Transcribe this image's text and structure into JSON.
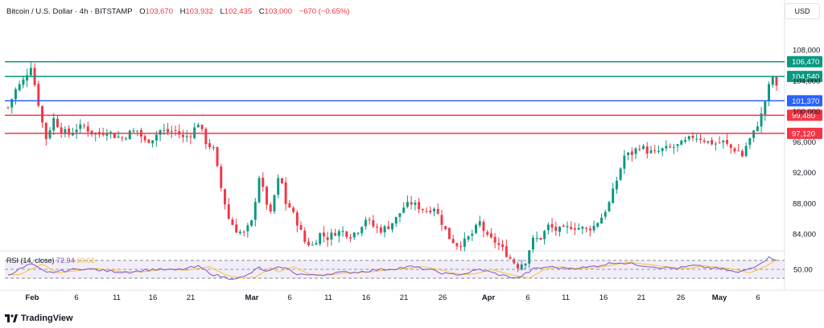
{
  "header": {
    "symbol": "Bitcoin / U.S. Dollar · 4h · BITSTAMP",
    "o_label": "O",
    "o_value": "103,670",
    "h_label": "H",
    "h_value": "103,932",
    "l_label": "L",
    "l_value": "102,435",
    "c_label": "C",
    "c_value": "103,000",
    "change": "−670 (−0.65%)"
  },
  "currency": "USD",
  "rsi": {
    "label": "RSI (14, close)",
    "value": "72.94",
    "ma_value": "69.62"
  },
  "footer": {
    "brand": "TradingView"
  },
  "colors": {
    "up": "#089981",
    "down": "#f23645",
    "rsi": "#7e57c2",
    "rsi_ma": "#f7c52d",
    "green_level": "#089981",
    "blue_level": "#2962ff",
    "red_level": "#f23645"
  },
  "chart_data": {
    "type": "candlestick",
    "title": "",
    "xlabel": "",
    "ylabel": "",
    "ylim": [
      82000,
      112000
    ],
    "y_ticks": [
      84000,
      88000,
      92000,
      96000,
      100000,
      104000,
      108000
    ],
    "y_tick_labels": [
      "84,000",
      "88,000",
      "92,000",
      "96,000",
      "100,000",
      "104,000",
      "108,000"
    ],
    "x_tick_labels": [
      "Feb",
      "6",
      "11",
      "16",
      "21",
      "Mar",
      "6",
      "11",
      "16",
      "21",
      "26",
      "Apr",
      "6",
      "11",
      "16",
      "21",
      "26",
      "May",
      "6"
    ],
    "horizontal_levels": [
      {
        "value": 106470,
        "label": "106,470",
        "color": "#089981"
      },
      {
        "value": 104540,
        "label": "104,540",
        "color": "#089981"
      },
      {
        "value": 101370,
        "label": "101,370",
        "color": "#2962ff"
      },
      {
        "value": 99480,
        "label": "99,480",
        "color": "#f23645"
      },
      {
        "value": 97120,
        "label": "97,120",
        "color": "#f23645"
      }
    ],
    "close_path": [
      [
        0,
        100500
      ],
      [
        2,
        102800
      ],
      [
        4,
        104000
      ],
      [
        6,
        106000
      ],
      [
        7,
        103500
      ],
      [
        9,
        98500
      ],
      [
        10,
        96500
      ],
      [
        12,
        99000
      ],
      [
        14,
        97500
      ],
      [
        16,
        97000
      ],
      [
        18,
        97800
      ],
      [
        20,
        98000
      ],
      [
        22,
        97200
      ],
      [
        24,
        97000
      ],
      [
        26,
        97500
      ],
      [
        28,
        96800
      ],
      [
        30,
        96500
      ],
      [
        32,
        97200
      ],
      [
        34,
        97500
      ],
      [
        36,
        96000
      ],
      [
        38,
        96500
      ],
      [
        40,
        97500
      ],
      [
        42,
        97300
      ],
      [
        44,
        97500
      ],
      [
        46,
        96500
      ],
      [
        48,
        97000
      ],
      [
        50,
        98500
      ],
      [
        52,
        96000
      ],
      [
        54,
        95000
      ],
      [
        56,
        90000
      ],
      [
        58,
        86000
      ],
      [
        60,
        84500
      ],
      [
        62,
        84000
      ],
      [
        64,
        85500
      ],
      [
        66,
        91500
      ],
      [
        68,
        88000
      ],
      [
        69,
        86500
      ],
      [
        70,
        89000
      ],
      [
        71,
        91000
      ],
      [
        72,
        90500
      ],
      [
        73,
        88000
      ],
      [
        74,
        87500
      ],
      [
        75,
        86500
      ],
      [
        76,
        85500
      ],
      [
        78,
        83000
      ],
      [
        80,
        82500
      ],
      [
        82,
        84000
      ],
      [
        84,
        83500
      ],
      [
        86,
        84200
      ],
      [
        88,
        84300
      ],
      [
        90,
        83800
      ],
      [
        92,
        84500
      ],
      [
        94,
        86000
      ],
      [
        96,
        85000
      ],
      [
        98,
        84500
      ],
      [
        100,
        85000
      ],
      [
        102,
        86000
      ],
      [
        104,
        87500
      ],
      [
        106,
        88000
      ],
      [
        108,
        87500
      ],
      [
        110,
        87000
      ],
      [
        112,
        87500
      ],
      [
        114,
        85500
      ],
      [
        116,
        83500
      ],
      [
        118,
        82600
      ],
      [
        120,
        83000
      ],
      [
        122,
        84000
      ],
      [
        124,
        85500
      ],
      [
        126,
        83500
      ],
      [
        128,
        83000
      ],
      [
        130,
        82000
      ],
      [
        132,
        80800
      ],
      [
        134,
        79800
      ],
      [
        136,
        80500
      ],
      [
        137,
        82000
      ],
      [
        138,
        83200
      ],
      [
        140,
        83500
      ],
      [
        142,
        85000
      ],
      [
        144,
        84500
      ],
      [
        146,
        84500
      ],
      [
        148,
        85000
      ],
      [
        150,
        84800
      ],
      [
        152,
        84600
      ],
      [
        154,
        85000
      ],
      [
        156,
        86200
      ],
      [
        158,
        88000
      ],
      [
        160,
        91000
      ],
      [
        162,
        94200
      ],
      [
        164,
        94500
      ],
      [
        166,
        95500
      ],
      [
        168,
        94800
      ],
      [
        170,
        94500
      ],
      [
        172,
        95000
      ],
      [
        174,
        95200
      ],
      [
        176,
        95500
      ],
      [
        178,
        96000
      ],
      [
        180,
        96700
      ],
      [
        182,
        96500
      ],
      [
        184,
        96000
      ],
      [
        186,
        95800
      ],
      [
        188,
        96000
      ],
      [
        190,
        95200
      ],
      [
        192,
        94800
      ],
      [
        193,
        94200
      ],
      [
        194,
        95500
      ],
      [
        196,
        97200
      ],
      [
        198,
        99500
      ],
      [
        200,
        103200
      ],
      [
        201,
        104500
      ],
      [
        202,
        103000
      ]
    ],
    "rsi_series": [
      [
        0,
        38
      ],
      [
        6,
        62
      ],
      [
        10,
        42
      ],
      [
        14,
        46
      ],
      [
        20,
        52
      ],
      [
        26,
        46
      ],
      [
        32,
        44
      ],
      [
        38,
        50
      ],
      [
        44,
        48
      ],
      [
        50,
        56
      ],
      [
        54,
        38
      ],
      [
        58,
        30
      ],
      [
        62,
        32
      ],
      [
        66,
        54
      ],
      [
        68,
        44
      ],
      [
        72,
        56
      ],
      [
        76,
        40
      ],
      [
        80,
        36
      ],
      [
        86,
        42
      ],
      [
        92,
        44
      ],
      [
        96,
        48
      ],
      [
        102,
        52
      ],
      [
        106,
        56
      ],
      [
        110,
        50
      ],
      [
        116,
        38
      ],
      [
        120,
        40
      ],
      [
        124,
        50
      ],
      [
        130,
        36
      ],
      [
        134,
        30
      ],
      [
        138,
        50
      ],
      [
        142,
        56
      ],
      [
        146,
        52
      ],
      [
        152,
        54
      ],
      [
        156,
        60
      ],
      [
        160,
        66
      ],
      [
        164,
        62
      ],
      [
        168,
        58
      ],
      [
        172,
        54
      ],
      [
        176,
        52
      ],
      [
        180,
        58
      ],
      [
        184,
        54
      ],
      [
        188,
        50
      ],
      [
        192,
        42
      ],
      [
        196,
        56
      ],
      [
        200,
        76
      ],
      [
        202,
        72.94
      ]
    ],
    "rsi_levels": [
      70,
      50,
      30
    ],
    "rsi_tick_labels": [
      "50.00"
    ]
  }
}
